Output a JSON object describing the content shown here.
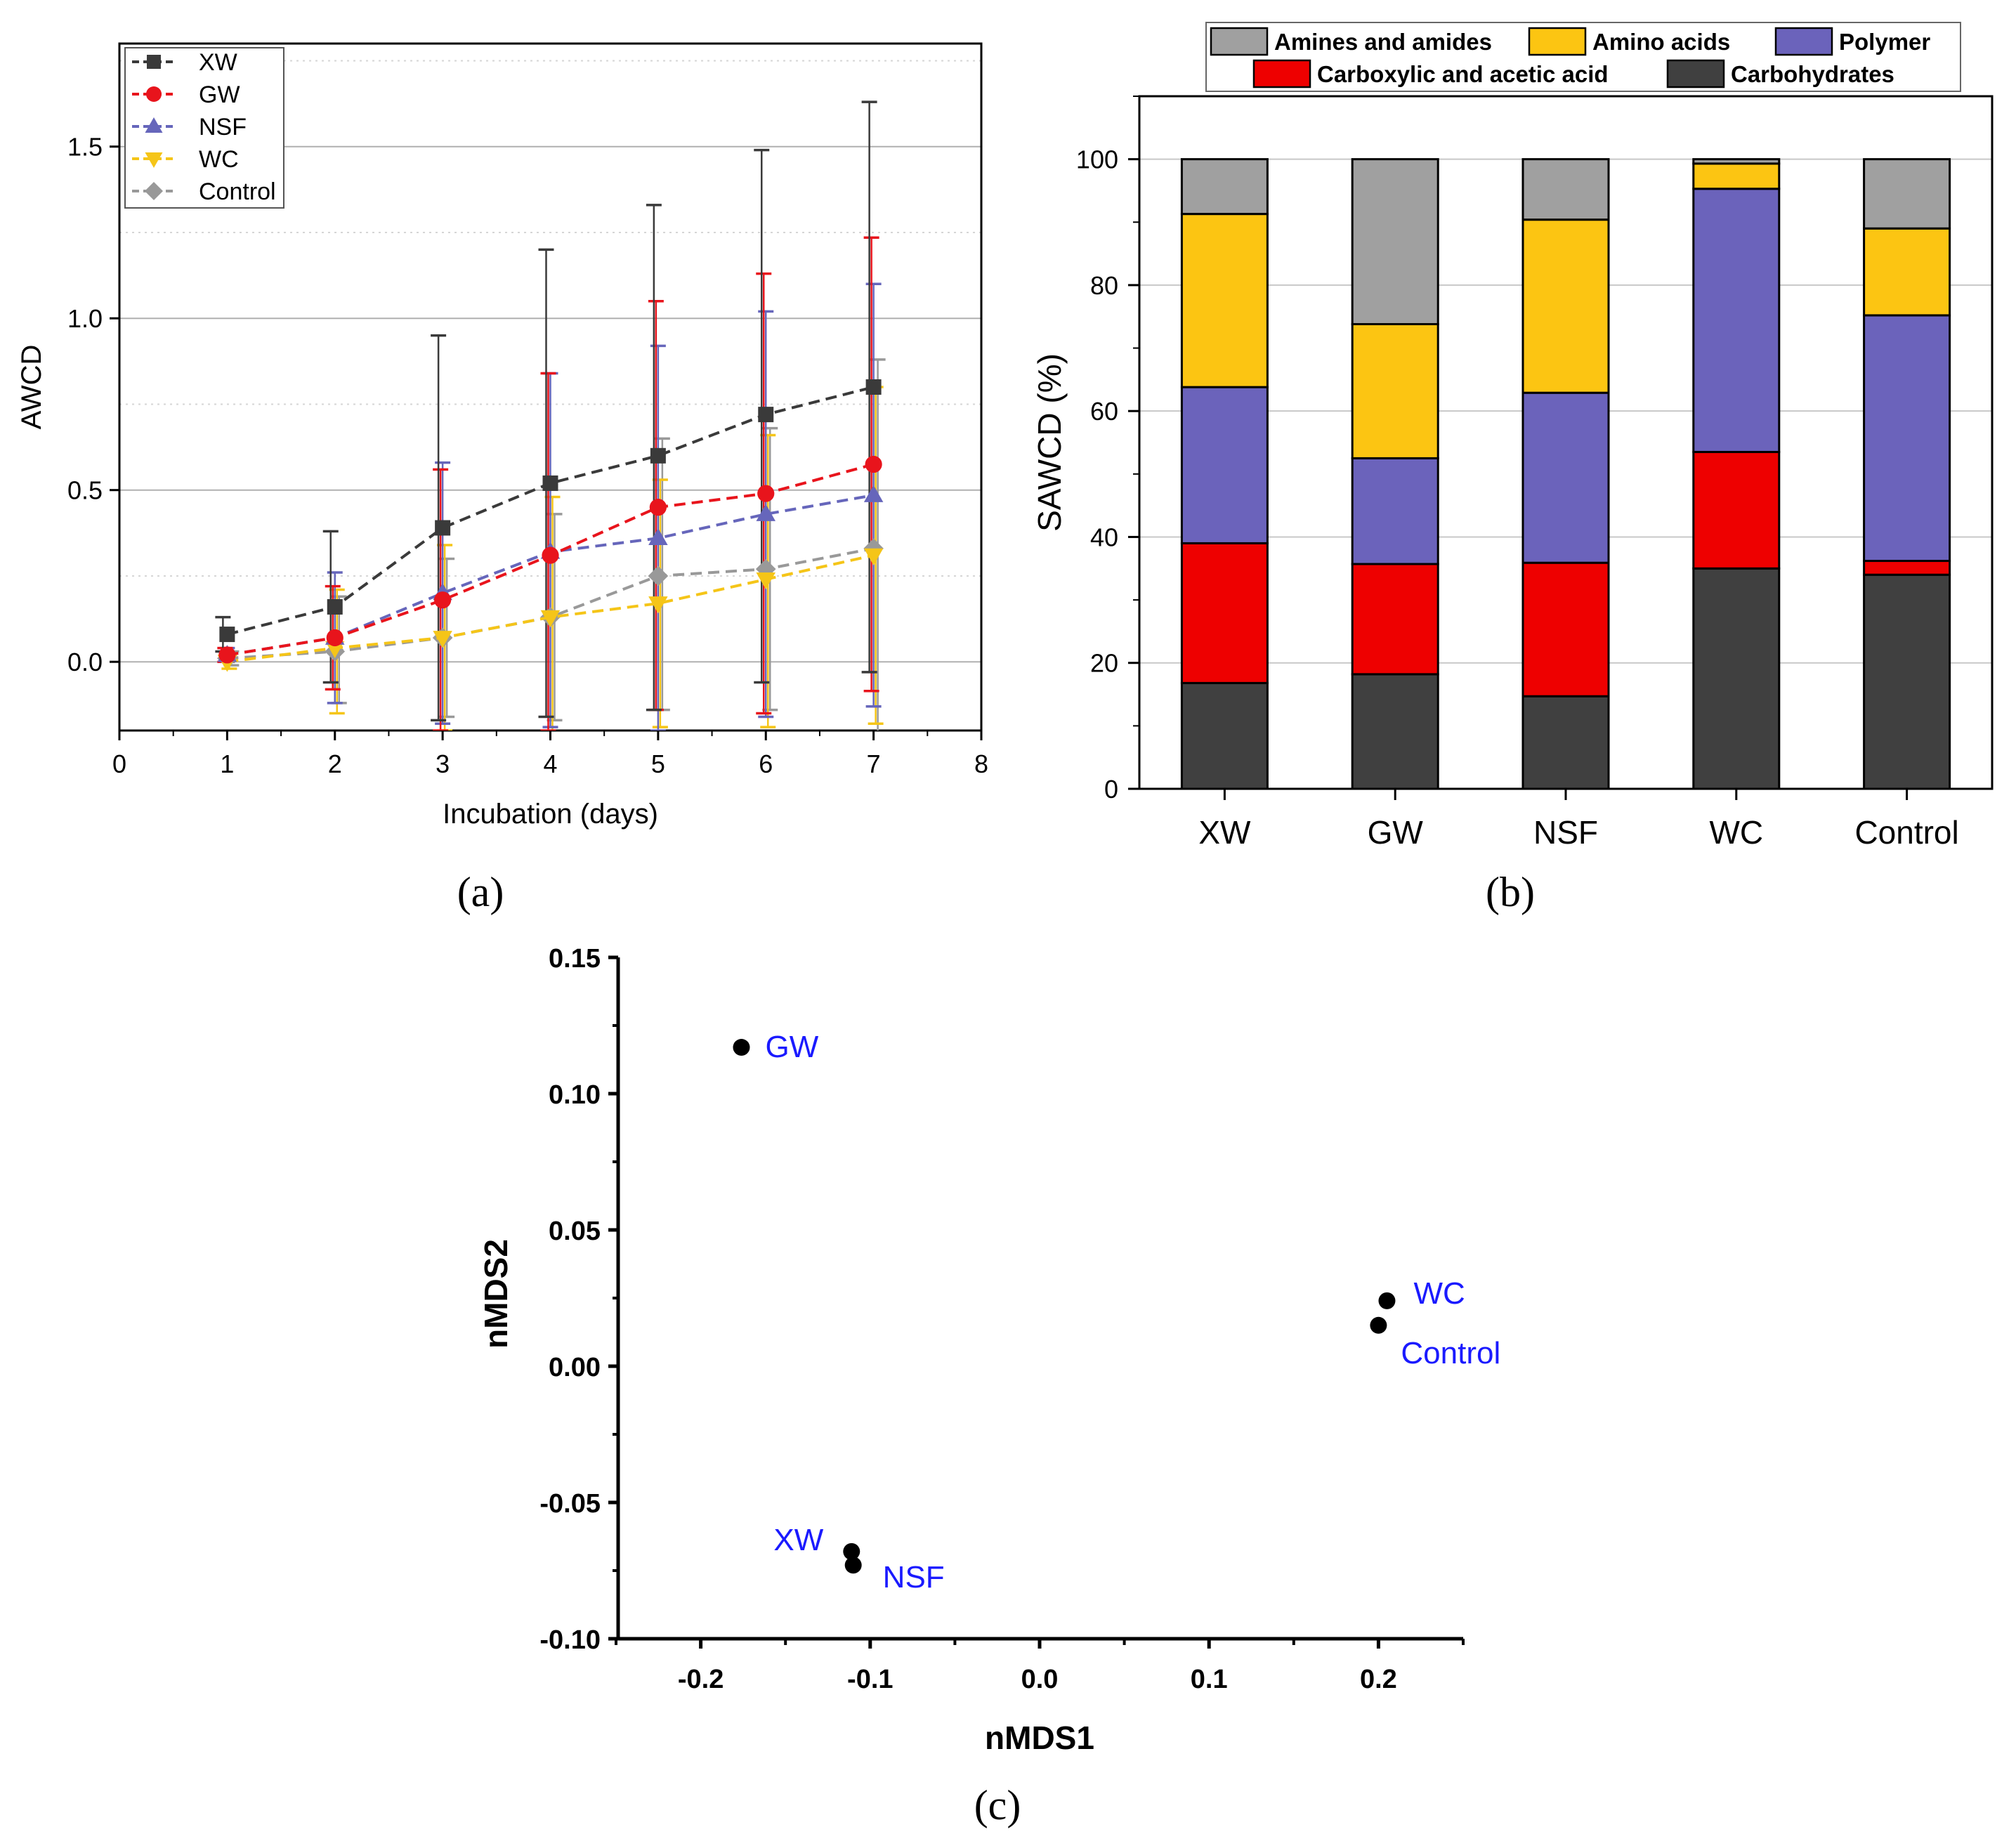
{
  "chart_data": [
    {
      "panel": "(a)",
      "type": "line",
      "xlabel": "Incubation (days)",
      "ylabel": "AWCD",
      "xlim": [
        0,
        8
      ],
      "ylim": [
        -0.2,
        1.8
      ],
      "xticks": [
        "0",
        "1",
        "2",
        "3",
        "4",
        "5",
        "6",
        "7",
        "8"
      ],
      "yticks": [
        "0.0",
        "0.5",
        "1.0",
        "1.5"
      ],
      "legend_position": "top-left",
      "x": [
        1,
        2,
        3,
        4,
        5,
        6,
        7
      ],
      "series": [
        {
          "name": "XW",
          "marker": "square",
          "color": "#3a3a3a",
          "values": [
            0.08,
            0.16,
            0.39,
            0.52,
            0.6,
            0.72,
            0.8
          ],
          "err_low": [
            0.05,
            0.22,
            0.56,
            0.68,
            0.74,
            0.78,
            0.83
          ],
          "err_high": [
            0.05,
            0.22,
            0.56,
            0.68,
            0.73,
            0.77,
            0.83
          ]
        },
        {
          "name": "GW",
          "marker": "circle",
          "color": "#e8141c",
          "values": [
            0.02,
            0.07,
            0.18,
            0.31,
            0.45,
            0.49,
            0.575
          ],
          "err_low": [
            0.02,
            0.15,
            0.38,
            0.51,
            0.59,
            0.64,
            0.66
          ],
          "err_high": [
            0.02,
            0.15,
            0.38,
            0.53,
            0.6,
            0.64,
            0.66
          ]
        },
        {
          "name": "NSF",
          "marker": "triangle-up",
          "color": "#6666bb",
          "values": [
            0.02,
            0.07,
            0.2,
            0.32,
            0.36,
            0.43,
            0.485
          ],
          "err_low": [
            0.02,
            0.19,
            0.38,
            0.51,
            0.56,
            0.59,
            0.615
          ],
          "err_high": [
            0.02,
            0.19,
            0.38,
            0.52,
            0.56,
            0.59,
            0.615
          ]
        },
        {
          "name": "WC",
          "marker": "triangle-down",
          "color": "#f5c518",
          "values": [
            0.0,
            0.04,
            0.07,
            0.13,
            0.17,
            0.24,
            0.31
          ],
          "err_low": [
            0.02,
            0.19,
            0.27,
            0.35,
            0.36,
            0.43,
            0.49
          ],
          "err_high": [
            0.02,
            0.17,
            0.27,
            0.35,
            0.36,
            0.42,
            0.49
          ]
        },
        {
          "name": "Control",
          "marker": "diamond",
          "color": "#999999",
          "values": [
            0.01,
            0.03,
            0.07,
            0.13,
            0.25,
            0.27,
            0.33
          ],
          "err_low": [
            0.02,
            0.15,
            0.23,
            0.3,
            0.39,
            0.41,
            0.54
          ],
          "err_high": [
            0.02,
            0.16,
            0.23,
            0.3,
            0.4,
            0.41,
            0.55
          ]
        }
      ]
    },
    {
      "panel": "(b)",
      "type": "bar",
      "stacked": true,
      "ylabel": "SAWCD (%)",
      "xlabel": "",
      "ylim": [
        0,
        110
      ],
      "yticks": [
        "0",
        "20",
        "40",
        "60",
        "80",
        "100"
      ],
      "categories": [
        "XW",
        "GW",
        "NSF",
        "WC",
        "Control"
      ],
      "legend_position": "top",
      "series": [
        {
          "name": "Carbohydrates",
          "color": "#404040",
          "values": [
            16.8,
            18.2,
            14.7,
            35.0,
            34.0
          ]
        },
        {
          "name": "Carboxylic and acetic acid",
          "color": "#ee0000",
          "values": [
            22.2,
            17.5,
            21.2,
            18.5,
            2.2
          ]
        },
        {
          "name": "Polymer",
          "color": "#6b63bb",
          "values": [
            24.8,
            16.8,
            27.0,
            41.8,
            39.0
          ]
        },
        {
          "name": "Amino acids",
          "color": "#fcc512",
          "values": [
            27.5,
            21.3,
            27.5,
            4.0,
            13.8
          ]
        },
        {
          "name": "Amines and amides",
          "color": "#a0a0a0",
          "values": [
            8.7,
            26.2,
            9.6,
            0.7,
            11.0
          ]
        }
      ]
    },
    {
      "panel": "(c)",
      "type": "scatter",
      "xlabel": "nMDS1",
      "ylabel": "nMDS2",
      "xlim": [
        -0.25,
        0.25
      ],
      "ylim": [
        -0.1,
        0.15
      ],
      "xticks": [
        "-0.2",
        "-0.1",
        "0.0",
        "0.1",
        "0.2"
      ],
      "yticks": [
        "-0.10",
        "-0.05",
        "0.00",
        "0.05",
        "0.10",
        "0.15"
      ],
      "points": [
        {
          "label": "GW",
          "x": -0.176,
          "y": 0.117
        },
        {
          "label": "WC",
          "x": 0.205,
          "y": 0.024
        },
        {
          "label": "Control",
          "x": 0.2,
          "y": 0.015
        },
        {
          "label": "XW",
          "x": -0.111,
          "y": -0.068
        },
        {
          "label": "NSF",
          "x": -0.11,
          "y": -0.073
        }
      ],
      "label_color": "#1a1aff"
    }
  ],
  "panel_labels": {
    "a": "(a)",
    "b": "(b)",
    "c": "(c)"
  }
}
